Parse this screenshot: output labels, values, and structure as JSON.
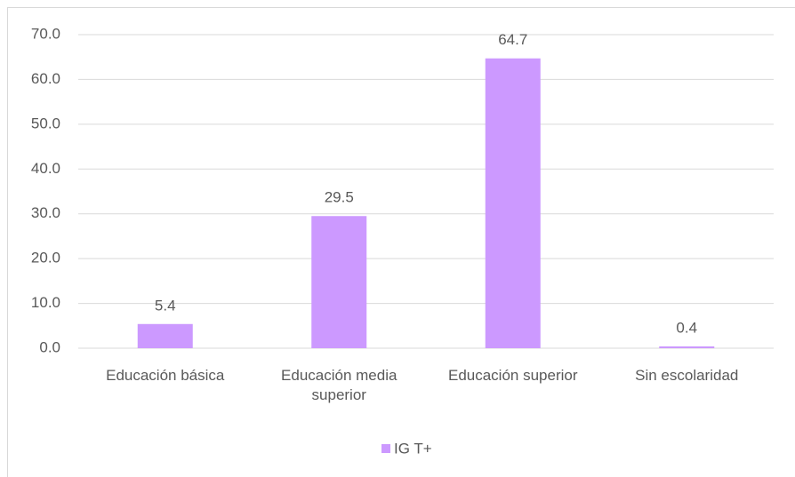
{
  "chart_data": {
    "type": "bar",
    "categories": [
      "Educación básica",
      "Educación media superior",
      "Educación superior",
      "Sin escolaridad"
    ],
    "series": [
      {
        "name": "IG T+",
        "color": "#cc99ff",
        "values": [
          5.4,
          29.5,
          64.7,
          0.4
        ]
      }
    ],
    "ylim": [
      0,
      70
    ],
    "yticks": [
      {
        "value": 0,
        "label": "0.0"
      },
      {
        "value": 10,
        "label": "10.0"
      },
      {
        "value": 20,
        "label": "20.0"
      },
      {
        "value": 30,
        "label": "30.0"
      },
      {
        "value": 40,
        "label": "40.0"
      },
      {
        "value": 50,
        "label": "50.0"
      },
      {
        "value": 60,
        "label": "60.0"
      },
      {
        "value": 70,
        "label": "70.0"
      }
    ],
    "grid": true,
    "legend": "bottom"
  }
}
